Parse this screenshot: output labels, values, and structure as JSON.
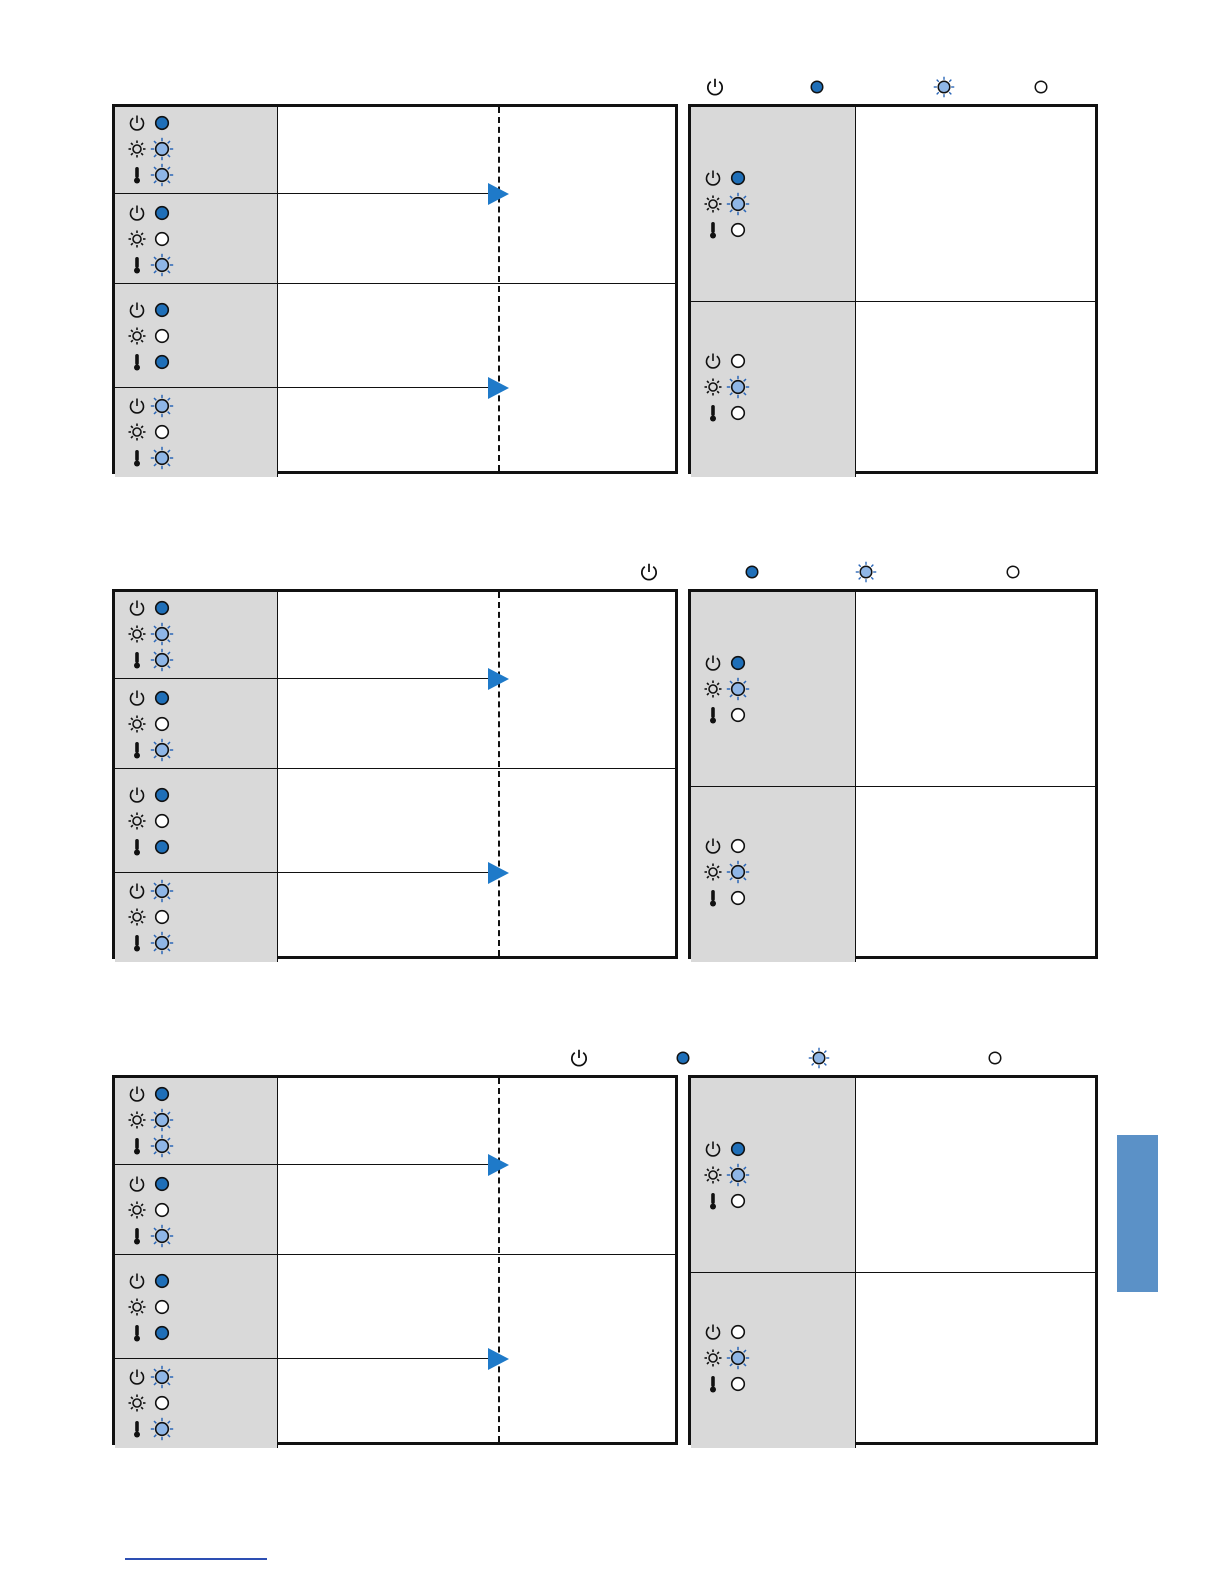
{
  "colors": {
    "on": "#1f6fb8",
    "blink": "#8fb6e6",
    "blink_ray": "#2a66b8",
    "off": "#ffffff",
    "cell_bg": "#d9d9d9",
    "arrow": "#1f7ac9",
    "side_tab": "#5b91c7"
  },
  "legend": [
    {
      "kind": "icon",
      "name": "power"
    },
    {
      "kind": "state",
      "name": "on"
    },
    {
      "kind": "state",
      "name": "blink"
    },
    {
      "kind": "state",
      "name": "off"
    }
  ],
  "sections": [
    {
      "left_rows": [
        {
          "power": "on",
          "lamp": "blink",
          "temp": "blink"
        },
        {
          "power": "on",
          "lamp": "off",
          "temp": "blink"
        },
        {
          "power": "on",
          "lamp": "off",
          "temp": "on"
        },
        {
          "power": "blink",
          "lamp": "off",
          "temp": "blink"
        }
      ],
      "right_rows": [
        {
          "power": "on",
          "lamp": "blink",
          "temp": "off"
        },
        {
          "power": "off",
          "lamp": "blink",
          "temp": "off"
        }
      ]
    },
    {
      "left_rows": [
        {
          "power": "on",
          "lamp": "blink",
          "temp": "blink"
        },
        {
          "power": "on",
          "lamp": "off",
          "temp": "blink"
        },
        {
          "power": "on",
          "lamp": "off",
          "temp": "on"
        },
        {
          "power": "blink",
          "lamp": "off",
          "temp": "blink"
        }
      ],
      "right_rows": [
        {
          "power": "on",
          "lamp": "blink",
          "temp": "off"
        },
        {
          "power": "off",
          "lamp": "blink",
          "temp": "off"
        }
      ]
    },
    {
      "left_rows": [
        {
          "power": "on",
          "lamp": "blink",
          "temp": "blink"
        },
        {
          "power": "on",
          "lamp": "off",
          "temp": "blink"
        },
        {
          "power": "on",
          "lamp": "off",
          "temp": "on"
        },
        {
          "power": "blink",
          "lamp": "off",
          "temp": "blink"
        }
      ],
      "right_rows": [
        {
          "power": "on",
          "lamp": "blink",
          "temp": "off"
        },
        {
          "power": "off",
          "lamp": "blink",
          "temp": "off"
        }
      ]
    }
  ]
}
